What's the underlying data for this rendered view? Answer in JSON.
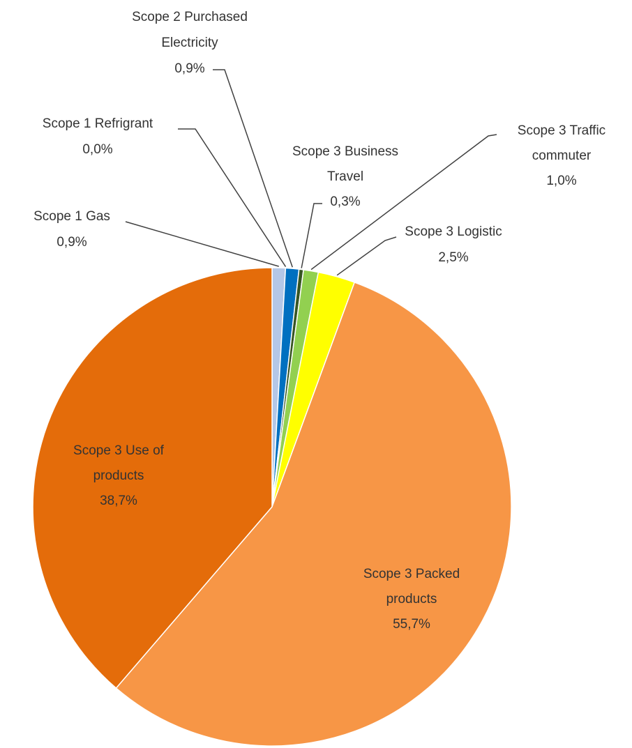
{
  "chart_data": {
    "type": "pie",
    "categories": [
      "Scope 1 Gas",
      "Scope 1 Refrigrant",
      "Scope 2 Purchased Electricity",
      "Scope 3 Business Travel",
      "Scope 3 Traffic commuter",
      "Scope 3 Logistic",
      "Scope 3 Packed products",
      "Scope 3 Use of products"
    ],
    "values": [
      0.9,
      0.0,
      0.9,
      0.3,
      1.0,
      2.5,
      55.7,
      38.7
    ],
    "value_labels": [
      "0,9%",
      "0,0%",
      "0,9%",
      "0,3%",
      "1,0%",
      "2,5%",
      "55,7%",
      "38,7%"
    ],
    "colors": [
      "#b4c7e7",
      "#7f7f7f",
      "#0070c0",
      "#375623",
      "#92d050",
      "#ffff00",
      "#f79646",
      "#e46c0a"
    ]
  }
}
